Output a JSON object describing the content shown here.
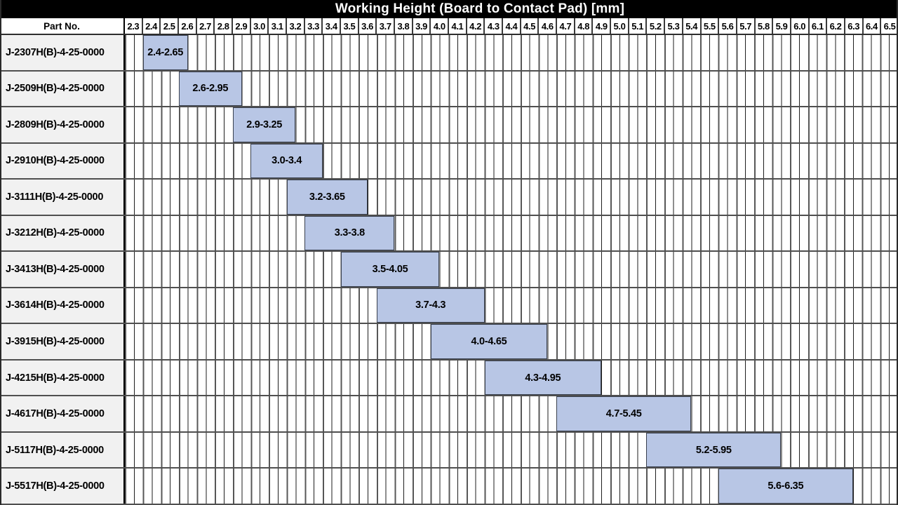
{
  "title": "Working Height (Board to Contact Pad) [mm]",
  "header": {
    "part_column_label": "Part No."
  },
  "axis": {
    "unit": "mm",
    "min": 2.3,
    "max": 6.6,
    "major_step": 0.1,
    "minor_step": 0.05,
    "ticks": [
      "2.3",
      "2.4",
      "2.5",
      "2.6",
      "2.7",
      "2.8",
      "2.9",
      "3.0",
      "3.1",
      "3.2",
      "3.3",
      "3.4",
      "3.5",
      "3.6",
      "3.7",
      "3.8",
      "3.9",
      "4.0",
      "4.1",
      "4.2",
      "4.3",
      "4.4",
      "4.5",
      "4.6",
      "4.7",
      "4.8",
      "4.9",
      "5.0",
      "5.1",
      "5.2",
      "5.3",
      "5.4",
      "5.5",
      "5.6",
      "5.7",
      "5.8",
      "5.9",
      "6.0",
      "6.1",
      "6.2",
      "6.3",
      "6.4",
      "6.5"
    ]
  },
  "chart_data": {
    "type": "bar",
    "subtype": "horizontal-range",
    "title": "Working Height (Board to Contact Pad) [mm]",
    "xlabel": "Working Height (Board to Contact Pad) [mm]",
    "xlim": [
      2.3,
      6.6
    ],
    "x_tick_step": 0.1,
    "grid": "on",
    "legend": "none",
    "categories": [
      "J-2307H(B)-4-25-0000",
      "J-2509H(B)-4-25-0000",
      "J-2809H(B)-4-25-0000",
      "J-2910H(B)-4-25-0000",
      "J-3111H(B)-4-25-0000",
      "J-3212H(B)-4-25-0000",
      "J-3413H(B)-4-25-0000",
      "J-3614H(B)-4-25-0000",
      "J-3915H(B)-4-25-0000",
      "J-4215H(B)-4-25-0000",
      "J-4617H(B)-4-25-0000",
      "J-5117H(B)-4-25-0000",
      "J-5517H(B)-4-25-0000"
    ],
    "rows": [
      {
        "part": "J-2307H(B)-4-25-0000",
        "start": 2.4,
        "end": 2.65,
        "range_label": "2.4-2.65"
      },
      {
        "part": "J-2509H(B)-4-25-0000",
        "start": 2.6,
        "end": 2.95,
        "range_label": "2.6-2.95"
      },
      {
        "part": "J-2809H(B)-4-25-0000",
        "start": 2.9,
        "end": 3.25,
        "range_label": "2.9-3.25"
      },
      {
        "part": "J-2910H(B)-4-25-0000",
        "start": 3.0,
        "end": 3.4,
        "range_label": "3.0-3.4"
      },
      {
        "part": "J-3111H(B)-4-25-0000",
        "start": 3.2,
        "end": 3.65,
        "range_label": "3.2-3.65"
      },
      {
        "part": "J-3212H(B)-4-25-0000",
        "start": 3.3,
        "end": 3.8,
        "range_label": "3.3-3.8"
      },
      {
        "part": "J-3413H(B)-4-25-0000",
        "start": 3.5,
        "end": 4.05,
        "range_label": "3.5-4.05"
      },
      {
        "part": "J-3614H(B)-4-25-0000",
        "start": 3.7,
        "end": 4.3,
        "range_label": "3.7-4.3"
      },
      {
        "part": "J-3915H(B)-4-25-0000",
        "start": 4.0,
        "end": 4.65,
        "range_label": "4.0-4.65"
      },
      {
        "part": "J-4215H(B)-4-25-0000",
        "start": 4.3,
        "end": 4.95,
        "range_label": "4.3-4.95"
      },
      {
        "part": "J-4617H(B)-4-25-0000",
        "start": 4.7,
        "end": 5.45,
        "range_label": "4.7-5.45"
      },
      {
        "part": "J-5117H(B)-4-25-0000",
        "start": 5.2,
        "end": 5.95,
        "range_label": "5.2-5.95"
      },
      {
        "part": "J-5517H(B)-4-25-0000",
        "start": 5.6,
        "end": 6.35,
        "range_label": "5.6-6.35"
      }
    ]
  },
  "colors": {
    "title_bg": "#000000",
    "title_text": "#ffffff",
    "bar_fill": "#b8c6e5",
    "bar_border": "#39404e",
    "part_cell_bg": "#f1f1f1",
    "grid_major": "#575757",
    "grid_minor": "#1e1e1e",
    "row_separator": "#4f4f4f",
    "text": "#000000"
  }
}
